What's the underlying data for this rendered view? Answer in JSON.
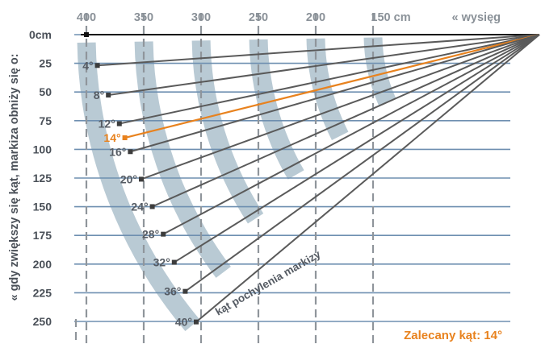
{
  "diagram": {
    "y_axis_title": "« gdy zwiększy się kąt, markiza obniży się o:",
    "top_axis_title": "« wysięg",
    "y_ticks": [
      "0cm",
      "25",
      "50",
      "75",
      "100",
      "125",
      "150",
      "175",
      "200",
      "225",
      "250"
    ],
    "x_ticks": [
      "400",
      "350",
      "300",
      "250",
      "200",
      "150 cm"
    ],
    "angle_labels": [
      "4°",
      "8°",
      "12°",
      "14°",
      "16°",
      "20°",
      "24°",
      "28°",
      "32°",
      "36°",
      "40°"
    ],
    "angle_values": [
      4,
      8,
      12,
      14,
      16,
      20,
      24,
      28,
      32,
      36,
      40
    ],
    "highlight_angle": 14,
    "band_label": "kąt pochylenia markizy",
    "recommended": "Zalecany kąt: 14°",
    "colors": {
      "highlight": "#e8821e",
      "band": "#b9cad4",
      "grid": "#6e8fb0",
      "dash": "#8f959b",
      "ray": "#5a5a5a"
    }
  }
}
